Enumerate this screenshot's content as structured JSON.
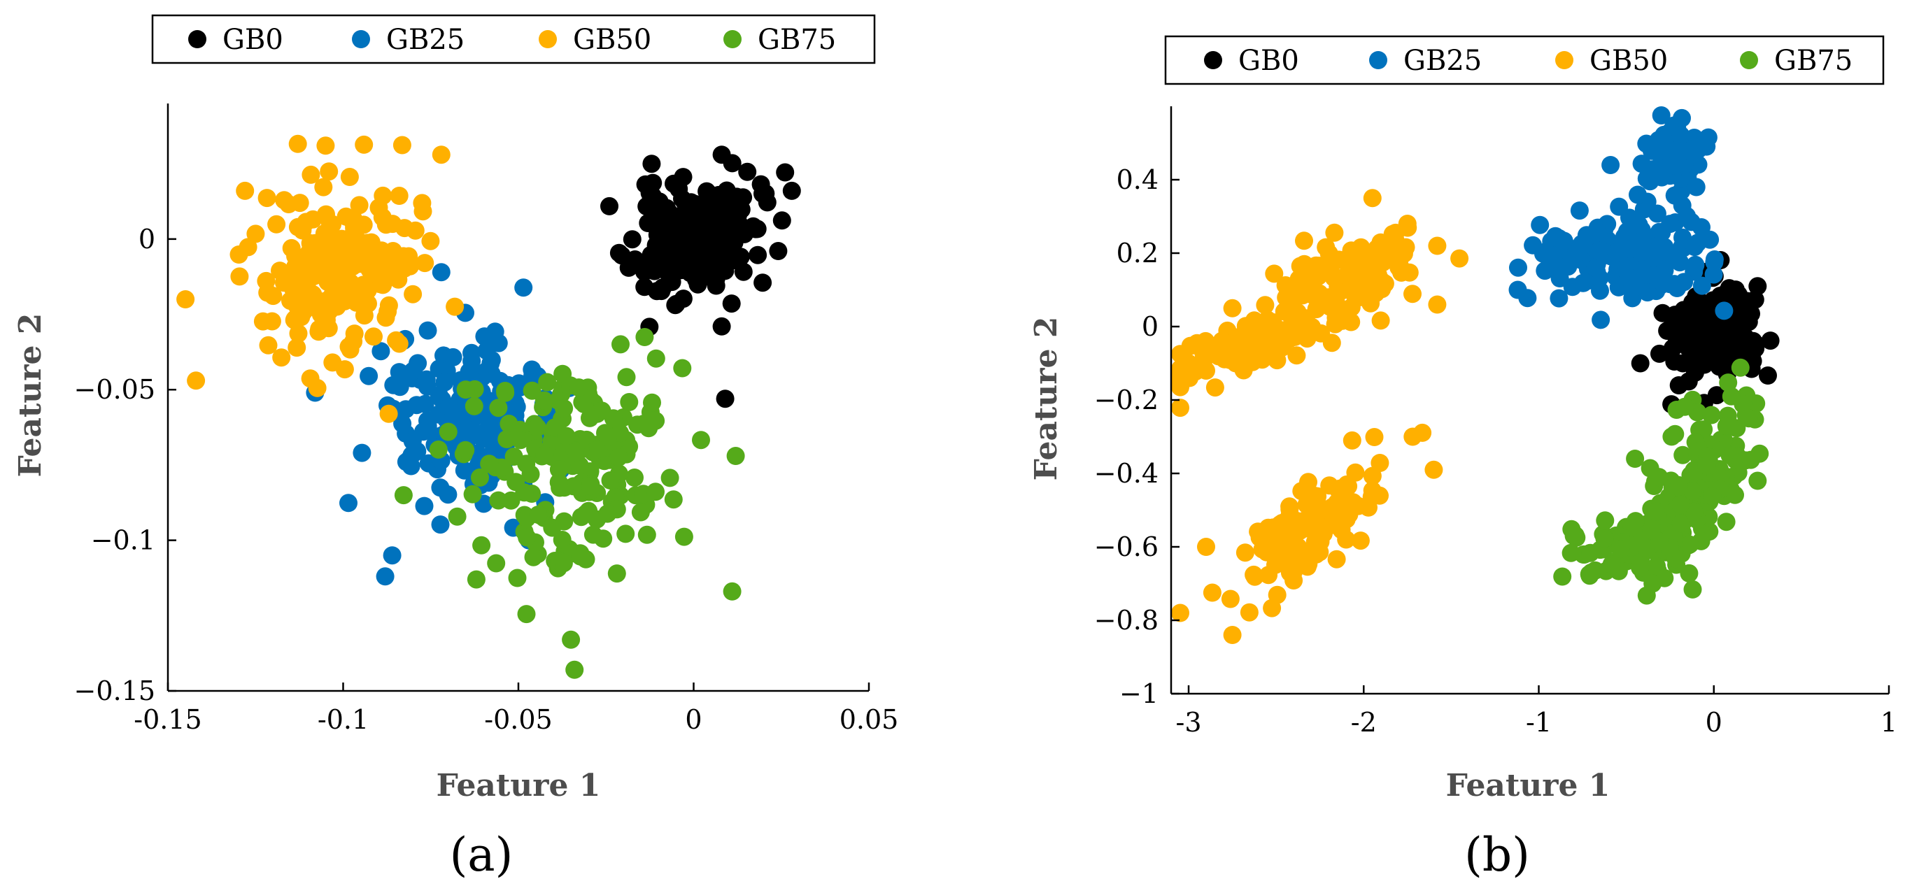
{
  "colors": {
    "GB0": "#000000",
    "GB25": "#0072BD",
    "GB50": "#FFB000",
    "GB75": "#55AA1A"
  },
  "chart_data": [
    {
      "type": "scatter",
      "panel_label": "(a)",
      "xlabel": "Feature 1",
      "ylabel": "Feature 2",
      "xlim": [
        -0.15,
        0.05
      ],
      "ylim": [
        -0.15,
        0.045
      ],
      "xticks": [
        -0.15,
        -0.1,
        -0.05,
        0,
        0.05
      ],
      "xtick_labels": [
        "-0.15",
        "-0.1",
        "-0.05",
        "0",
        "0.05"
      ],
      "yticks": [
        -0.15,
        -0.1,
        -0.05,
        0
      ],
      "ytick_labels": [
        "−0.15",
        "−0.1",
        "−0.05",
        "0"
      ],
      "legend": {
        "location": "top",
        "entries": [
          "GB0",
          "GB25",
          "GB50",
          "GB75"
        ]
      },
      "clusters": [
        {
          "name": "GB0",
          "cx": 0.0,
          "cy": 0.0,
          "sx": 0.009,
          "sy": 0.0095,
          "rho": 0.2,
          "n": 190,
          "seed": 11,
          "extra": [
            [
              0.008,
              0.028
            ],
            [
              0.028,
              0.016
            ],
            [
              0.009,
              -0.053
            ],
            [
              0.008,
              -0.029
            ],
            [
              -0.012,
              0.025
            ]
          ]
        },
        {
          "name": "GB25",
          "cx": -0.065,
          "cy": -0.06,
          "sx": 0.013,
          "sy": 0.014,
          "rho": -0.1,
          "n": 170,
          "seed": 23,
          "extra": [
            [
              -0.088,
              -0.112
            ],
            [
              -0.086,
              -0.105
            ],
            [
              -0.108,
              -0.051
            ],
            [
              -0.072,
              -0.011
            ],
            [
              -0.047,
              -0.1
            ]
          ]
        },
        {
          "name": "GB50",
          "cx": -0.1,
          "cy": -0.01,
          "sx": 0.011,
          "sy": 0.014,
          "rho": 0.1,
          "n": 200,
          "seed": 37,
          "extra": [
            [
              -0.142,
              -0.047
            ],
            [
              -0.145,
              -0.02
            ],
            [
              -0.128,
              0.016
            ],
            [
              -0.072,
              0.028
            ],
            [
              -0.105,
              0.031
            ],
            [
              -0.087,
              -0.058
            ]
          ]
        },
        {
          "name": "GB75",
          "cx": -0.035,
          "cy": -0.075,
          "sx": 0.014,
          "sy": 0.017,
          "rho": 0.05,
          "n": 180,
          "seed": 53,
          "extra": [
            [
              -0.034,
              -0.143
            ],
            [
              -0.035,
              -0.133
            ],
            [
              0.011,
              -0.117
            ],
            [
              -0.07,
              -0.064
            ],
            [
              -0.062,
              -0.113
            ],
            [
              0.012,
              -0.072
            ]
          ]
        }
      ]
    },
    {
      "type": "scatter",
      "panel_label": "(b)",
      "xlabel": "Feature 1",
      "ylabel": "Feature 2",
      "xlim": [
        -3.1,
        1
      ],
      "ylim": [
        -1,
        0.6
      ],
      "xticks": [
        -3,
        -2,
        -1,
        0,
        1
      ],
      "xtick_labels": [
        "-3",
        "-2",
        "-1",
        "0",
        "1"
      ],
      "yticks": [
        -1,
        -0.8,
        -0.6,
        -0.4,
        -0.2,
        0,
        0.2,
        0.4
      ],
      "ytick_labels": [
        "−1",
        "−0.8",
        "−0.6",
        "−0.4",
        "−0.2",
        "0",
        "0.2",
        "0.4"
      ],
      "legend": {
        "location": "top",
        "entries": [
          "GB0",
          "GB25",
          "GB50",
          "GB75"
        ]
      },
      "clusters": [
        {
          "name": "GB0",
          "cx": 0.0,
          "cy": -0.01,
          "sx": 0.14,
          "sy": 0.065,
          "rho": 0.1,
          "n": 160,
          "seed": 71,
          "extra": [
            [
              -0.2,
              -0.16
            ],
            [
              0.25,
              0.11
            ],
            [
              -0.42,
              -0.1
            ]
          ]
        },
        {
          "name": "GB25",
          "cx": -0.55,
          "cy": 0.19,
          "sx": 0.27,
          "sy": 0.06,
          "rho": 0.0,
          "n": 170,
          "seed": 83,
          "extra": [
            [
              -1.12,
              0.1
            ],
            [
              -0.38,
              0.34
            ],
            [
              -0.18,
              0.33
            ]
          ]
        },
        {
          "name": "GB25",
          "cx": -0.23,
          "cy": 0.46,
          "sx": 0.09,
          "sy": 0.045,
          "rho": 0.0,
          "n": 70,
          "seed": 97,
          "extra": [
            [
              -0.3,
              0.59
            ],
            [
              -0.59,
              0.44
            ],
            [
              -0.1,
              0.38
            ]
          ]
        },
        {
          "name": "GB50",
          "cx": -2.1,
          "cy": 0.13,
          "sx": 0.2,
          "sy": 0.06,
          "rho": 0.3,
          "n": 120,
          "seed": 101,
          "extra": [
            [
              -1.95,
              0.35
            ],
            [
              -1.58,
              0.22
            ],
            [
              -1.58,
              0.06
            ],
            [
              -1.75,
              0.28
            ]
          ]
        },
        {
          "name": "GB50",
          "cx": -2.65,
          "cy": -0.05,
          "sx": 0.24,
          "sy": 0.05,
          "rho": 0.75,
          "n": 110,
          "seed": 113,
          "extra": [
            [
              -3.0,
              -0.1
            ],
            [
              -2.9,
              -0.12
            ],
            [
              -2.75,
              0.05
            ]
          ]
        },
        {
          "name": "GB50",
          "cx": -2.32,
          "cy": -0.54,
          "sx": 0.22,
          "sy": 0.1,
          "rho": 0.75,
          "n": 120,
          "seed": 127,
          "extra": [
            [
              -3.08,
              -0.78
            ],
            [
              -2.75,
              -0.84
            ],
            [
              -1.72,
              -0.3
            ],
            [
              -1.6,
              -0.39
            ],
            [
              -2.9,
              -0.6
            ],
            [
              -2.1,
              -0.58
            ]
          ]
        },
        {
          "name": "GB75",
          "cx": -0.1,
          "cy": -0.43,
          "sx": 0.14,
          "sy": 0.12,
          "rho": 0.55,
          "n": 150,
          "seed": 131,
          "extra": [
            [
              0.1,
              -0.19
            ],
            [
              0.2,
              -0.25
            ],
            [
              -0.45,
              -0.36
            ],
            [
              0.25,
              -0.42
            ]
          ]
        },
        {
          "name": "GB75",
          "cx": -0.45,
          "cy": -0.58,
          "sx": 0.18,
          "sy": 0.045,
          "rho": 0.3,
          "n": 80,
          "seed": 139,
          "extra": [
            [
              -0.8,
              -0.57
            ],
            [
              -0.7,
              -0.67
            ],
            [
              -0.35,
              -0.7
            ]
          ]
        }
      ]
    }
  ]
}
